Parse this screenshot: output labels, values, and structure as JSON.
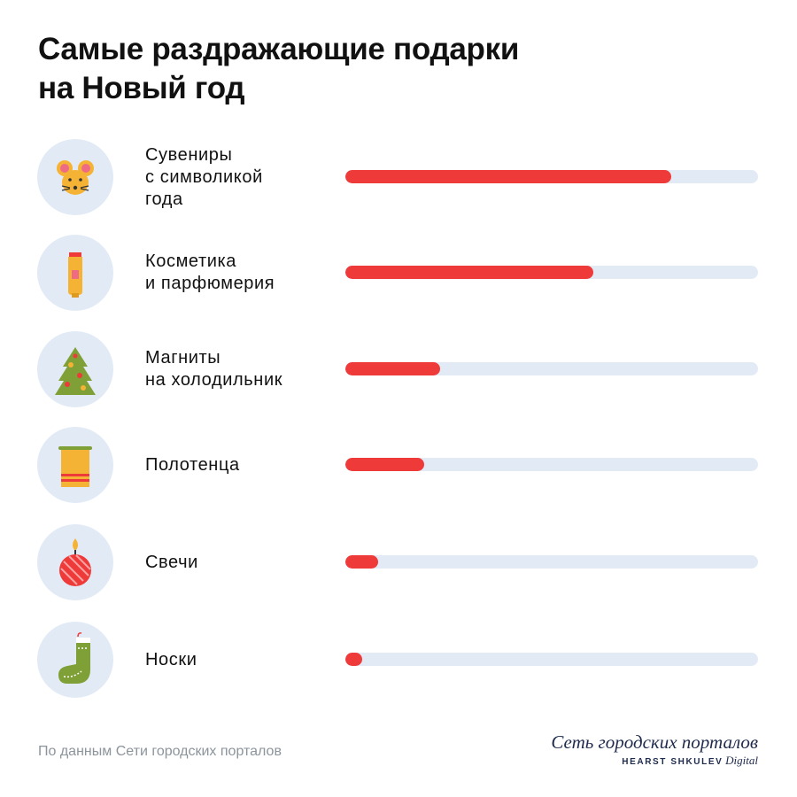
{
  "title": "Самые раздражающие подарки\nна Новый год",
  "chart_data": {
    "type": "bar",
    "orientation": "horizontal",
    "title": "Самые раздражающие подарки\nна Новый год",
    "categories": [
      "Сувениры\nс символикой\nгода",
      "Косметика\nи парфюмерия",
      "Магниты\nна холодильник",
      "Полотенца",
      "Свечи",
      "Носки"
    ],
    "icons": [
      "mouse-icon",
      "cream-tube-icon",
      "christmas-tree-icon",
      "towel-icon",
      "candle-icon",
      "sock-icon"
    ],
    "values": [
      0.79,
      0.6,
      0.23,
      0.19,
      0.08,
      0.04
    ],
    "value_scale": "fraction-of-track",
    "xlim": [
      0,
      1
    ],
    "grid": false,
    "legend": "none",
    "colors": {
      "bar": "#ef3a3a",
      "track": "#e2ebf5",
      "icon_bg": "#e2ebf5"
    }
  },
  "footer": {
    "source": "По данным Сети городских порталов",
    "logo_main": "Сеть городских порталов",
    "logo_brand": "HEARST SHKULEV",
    "logo_digital": "Digital"
  }
}
